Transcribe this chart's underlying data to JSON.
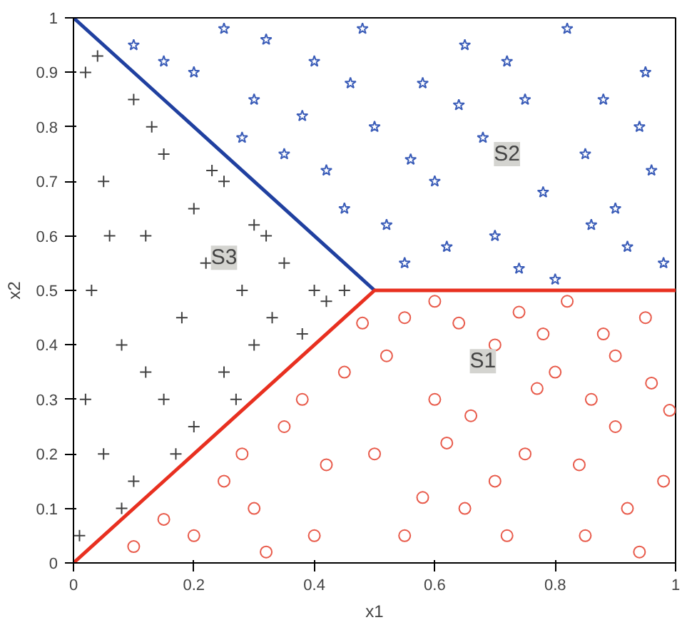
{
  "chart_data": {
    "type": "scatter",
    "xlabel": "x1",
    "ylabel": "x2",
    "xlim": [
      0,
      1
    ],
    "ylim": [
      0,
      1
    ],
    "xticks": [
      0,
      0.2,
      0.4,
      0.6,
      0.8,
      1
    ],
    "yticks": [
      0,
      0.1,
      0.2,
      0.3,
      0.4,
      0.5,
      0.6,
      0.7,
      0.8,
      0.9,
      1
    ],
    "grid": false,
    "annotations": [
      {
        "text": "S1",
        "x": 0.68,
        "y": 0.37
      },
      {
        "text": "S2",
        "x": 0.72,
        "y": 0.75
      },
      {
        "text": "S3",
        "x": 0.25,
        "y": 0.56
      }
    ],
    "series": [
      {
        "marker": "circle",
        "color": "#e85a4a",
        "x": [
          0.55,
          0.6,
          0.65,
          0.7,
          0.75,
          0.8,
          0.85,
          0.9,
          0.95,
          0.98,
          0.3,
          0.35,
          0.4,
          0.45,
          0.5,
          0.2,
          0.25,
          0.15,
          0.1,
          0.6,
          0.72,
          0.82,
          0.88,
          0.92,
          0.58,
          0.66,
          0.77,
          0.84,
          0.96,
          0.42,
          0.48,
          0.52,
          0.62,
          0.7,
          0.78,
          0.86,
          0.94,
          0.32,
          0.38,
          0.28,
          0.55,
          0.64,
          0.9,
          0.74,
          0.99
        ],
        "values": [
          0.45,
          0.3,
          0.1,
          0.4,
          0.2,
          0.35,
          0.05,
          0.25,
          0.45,
          0.15,
          0.1,
          0.25,
          0.05,
          0.35,
          0.2,
          0.05,
          0.15,
          0.08,
          0.03,
          0.48,
          0.05,
          0.48,
          0.42,
          0.1,
          0.12,
          0.27,
          0.32,
          0.18,
          0.33,
          0.18,
          0.44,
          0.38,
          0.22,
          0.15,
          0.42,
          0.3,
          0.02,
          0.02,
          0.3,
          0.2,
          0.05,
          0.44,
          0.38,
          0.46,
          0.28
        ]
      },
      {
        "marker": "star",
        "color": "#3a5cb8",
        "x": [
          0.1,
          0.2,
          0.25,
          0.3,
          0.35,
          0.4,
          0.45,
          0.5,
          0.55,
          0.6,
          0.65,
          0.7,
          0.75,
          0.8,
          0.85,
          0.9,
          0.95,
          0.98,
          0.42,
          0.48,
          0.58,
          0.62,
          0.68,
          0.72,
          0.78,
          0.82,
          0.88,
          0.92,
          0.96,
          0.15,
          0.32,
          0.38,
          0.52,
          0.56,
          0.64,
          0.74,
          0.86,
          0.94,
          0.46,
          0.28
        ],
        "values": [
          0.95,
          0.9,
          0.98,
          0.85,
          0.75,
          0.92,
          0.65,
          0.8,
          0.55,
          0.7,
          0.95,
          0.6,
          0.85,
          0.52,
          0.75,
          0.65,
          0.9,
          0.55,
          0.72,
          0.98,
          0.88,
          0.58,
          0.78,
          0.92,
          0.68,
          0.98,
          0.85,
          0.58,
          0.72,
          0.92,
          0.96,
          0.82,
          0.62,
          0.74,
          0.84,
          0.54,
          0.62,
          0.8,
          0.88,
          0.78
        ]
      },
      {
        "marker": "cross",
        "color": "#404040",
        "x": [
          0.02,
          0.03,
          0.05,
          0.05,
          0.08,
          0.1,
          0.1,
          0.12,
          0.15,
          0.15,
          0.18,
          0.2,
          0.2,
          0.22,
          0.25,
          0.25,
          0.28,
          0.3,
          0.3,
          0.33,
          0.35,
          0.38,
          0.4,
          0.42,
          0.45,
          0.01,
          0.02,
          0.04,
          0.13,
          0.17,
          0.08,
          0.23,
          0.27,
          0.12,
          0.06,
          0.32
        ],
        "values": [
          0.9,
          0.5,
          0.2,
          0.7,
          0.4,
          0.85,
          0.15,
          0.6,
          0.3,
          0.75,
          0.45,
          0.25,
          0.65,
          0.55,
          0.35,
          0.7,
          0.5,
          0.4,
          0.62,
          0.45,
          0.55,
          0.42,
          0.5,
          0.48,
          0.5,
          0.05,
          0.3,
          0.93,
          0.8,
          0.2,
          0.1,
          0.72,
          0.3,
          0.35,
          0.6,
          0.6
        ]
      },
      {
        "type": "line",
        "color": "#2040a0",
        "x": [
          0,
          0.5
        ],
        "values": [
          1,
          0.5
        ]
      },
      {
        "type": "line",
        "color": "#e83020",
        "x": [
          0,
          0.5,
          1
        ],
        "values": [
          0,
          0.5,
          0.5
        ]
      }
    ]
  }
}
